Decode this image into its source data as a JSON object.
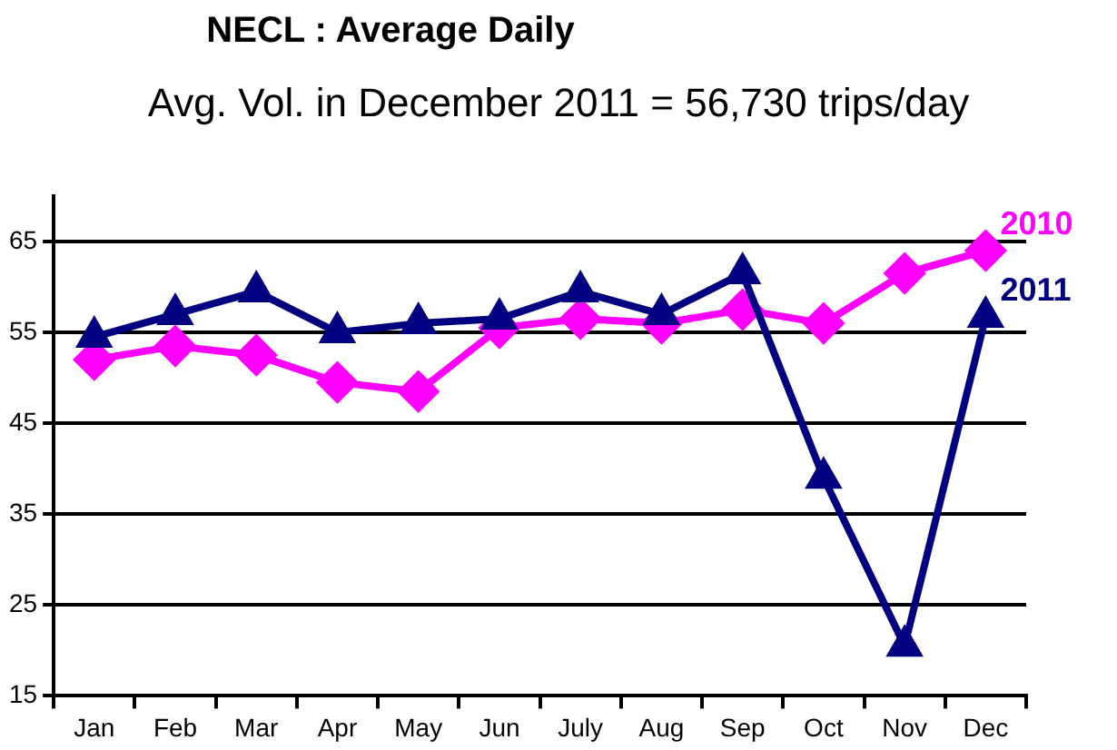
{
  "chart_data": {
    "type": "line",
    "title": "NECL : Average Daily",
    "subtitle": "Avg. Vol. in December 2011 = 56,730 trips/day",
    "categories": [
      "Jan",
      "Feb",
      "Mar",
      "Apr",
      "May",
      "Jun",
      "July",
      "Aug",
      "Sep",
      "Oct",
      "Nov",
      "Dec"
    ],
    "series": [
      {
        "name": "2010",
        "color": "#ff00ff",
        "marker": "diamond",
        "values": [
          52,
          53.5,
          52.5,
          49.5,
          48.5,
          55.5,
          56.5,
          56,
          57.5,
          56,
          61.5,
          64
        ]
      },
      {
        "name": "2011",
        "color": "#000080",
        "marker": "triangle",
        "values": [
          54.5,
          57,
          59.5,
          55,
          56,
          56.5,
          59.5,
          57,
          61.5,
          39,
          20.5,
          56.7
        ]
      }
    ],
    "ylim": [
      15,
      70
    ],
    "yticks": [
      15,
      25,
      35,
      45,
      55,
      65
    ],
    "grid": "y",
    "legend": false,
    "line_style": "solid"
  }
}
